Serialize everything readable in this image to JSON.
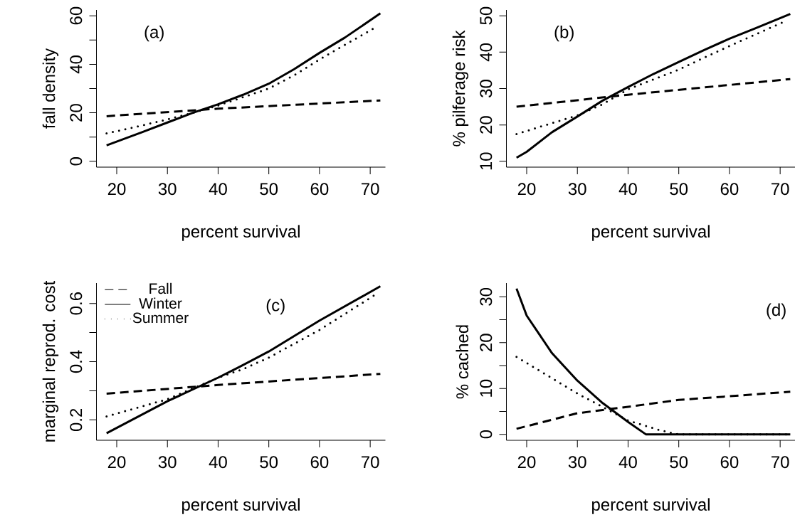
{
  "chart_data": [
    {
      "type": "line",
      "xlabel": "percent survival",
      "ylabel": "fall density",
      "annotations": [
        "(a)"
      ],
      "xlim": [
        16,
        73
      ],
      "ylim": [
        -2.4,
        62.4
      ],
      "xticks": [
        20,
        30,
        40,
        50,
        60,
        70
      ],
      "yticks": [
        0,
        {
          "value": 10,
          "label": null
        },
        20,
        {
          "value": 30,
          "label": null
        },
        40,
        {
          "value": 50,
          "label": null
        },
        60
      ],
      "grid": false,
      "marker": "none",
      "series": [
        {
          "color": "#000000",
          "line_style": "dashed",
          "x": [
            18,
            40,
            72
          ],
          "values": [
            18.6,
            21.7,
            25.1
          ]
        },
        {
          "color": "#000000",
          "line_style": "solid",
          "x": [
            18,
            25,
            30,
            35,
            40,
            45,
            50,
            55,
            60,
            65,
            72
          ],
          "values": [
            6.6,
            12,
            16,
            20,
            23.5,
            27.5,
            32,
            38,
            44.7,
            51,
            61
          ]
        },
        {
          "color": "#000000",
          "line_style": "dotted",
          "x": [
            18,
            25,
            30,
            35,
            40,
            45,
            50,
            55,
            60,
            65,
            71
          ],
          "values": [
            11.5,
            14.8,
            17.3,
            20,
            23,
            26.5,
            30,
            35.5,
            42,
            48,
            55.2
          ]
        }
      ]
    },
    {
      "type": "line",
      "xlabel": "percent survival",
      "ylabel": "% pilferage risk",
      "annotations": [
        "(b)"
      ],
      "xlim": [
        16,
        73
      ],
      "ylim": [
        8.4,
        51.6
      ],
      "xticks": [
        20,
        30,
        40,
        50,
        60,
        70
      ],
      "yticks": [
        10,
        20,
        30,
        40,
        50
      ],
      "grid": false,
      "marker": "none",
      "series": [
        {
          "color": "#000000",
          "line_style": "dashed",
          "x": [
            18,
            40,
            72
          ],
          "values": [
            25,
            28.3,
            32.6
          ]
        },
        {
          "color": "#000000",
          "line_style": "solid",
          "x": [
            18,
            20,
            25,
            30,
            35,
            40,
            45,
            50,
            55,
            60,
            65,
            72
          ],
          "values": [
            11,
            12.6,
            18,
            22.3,
            26.7,
            30.4,
            34,
            37.3,
            40.6,
            43.7,
            46.5,
            50.5
          ]
        },
        {
          "color": "#000000",
          "line_style": "dotted",
          "x": [
            18,
            25,
            30,
            35,
            40,
            45,
            50,
            55,
            60,
            65,
            71
          ],
          "values": [
            17.5,
            20.5,
            22.6,
            25.7,
            29.8,
            32.5,
            35.2,
            38.5,
            41.7,
            44.8,
            48.5
          ]
        }
      ]
    },
    {
      "type": "line",
      "xlabel": "percent survival",
      "ylabel": "marginal reprod. cost",
      "annotations": [
        "(c)"
      ],
      "xlim": [
        16,
        73
      ],
      "ylim": [
        0.13,
        0.67
      ],
      "xticks": [
        20,
        30,
        40,
        50,
        60,
        70
      ],
      "yticks": [
        0.2,
        {
          "value": 0.3,
          "label": null
        },
        0.4,
        {
          "value": 0.5,
          "label": null
        },
        0.6
      ],
      "grid": false,
      "marker": "none",
      "legend": "top left",
      "series": [
        {
          "name": "Fall",
          "color": "#000000",
          "line_style": "dashed",
          "x": [
            18,
            40,
            72
          ],
          "values": [
            0.29,
            0.32,
            0.358
          ]
        },
        {
          "name": "Winter",
          "color": "#000000",
          "line_style": "solid",
          "x": [
            18,
            30,
            40,
            44,
            50,
            60,
            72
          ],
          "values": [
            0.154,
            0.264,
            0.345,
            0.38,
            0.435,
            0.541,
            0.659
          ]
        },
        {
          "name": "Summer",
          "color": "#000000",
          "line_style": "dotted",
          "x": [
            18,
            30,
            40,
            45,
            50,
            60,
            71
          ],
          "values": [
            0.212,
            0.271,
            0.345,
            0.375,
            0.414,
            0.509,
            0.63
          ]
        }
      ]
    },
    {
      "type": "line",
      "xlabel": "percent survival",
      "ylabel": "% cached",
      "annotations": [
        "(d)"
      ],
      "xlim": [
        16,
        73
      ],
      "ylim": [
        -1.3,
        33
      ],
      "xticks": [
        20,
        30,
        40,
        50,
        60,
        70
      ],
      "yticks": [
        0,
        {
          "value": 5,
          "label": null
        },
        10,
        {
          "value": 15,
          "label": null
        },
        20,
        {
          "value": 25,
          "label": null
        },
        30
      ],
      "grid": false,
      "marker": "none",
      "series": [
        {
          "color": "#000000",
          "line_style": "dashed",
          "x": [
            18,
            30,
            40,
            50,
            60,
            72
          ],
          "values": [
            1.2,
            4.6,
            6,
            7.5,
            8.3,
            9.3
          ]
        },
        {
          "color": "#000000",
          "line_style": "solid",
          "x": [
            18,
            20,
            22.5,
            25,
            30,
            35,
            40,
            43.5,
            72
          ],
          "values": [
            31.8,
            25.9,
            21.8,
            17.7,
            11.7,
            6.8,
            2.7,
            0,
            0
          ]
        },
        {
          "color": "#000000",
          "line_style": "dotted",
          "x": [
            18,
            30,
            40,
            46,
            48.5,
            50,
            72
          ],
          "values": [
            16.9,
            8.9,
            3,
            1,
            0.3,
            0,
            0
          ]
        }
      ]
    }
  ]
}
